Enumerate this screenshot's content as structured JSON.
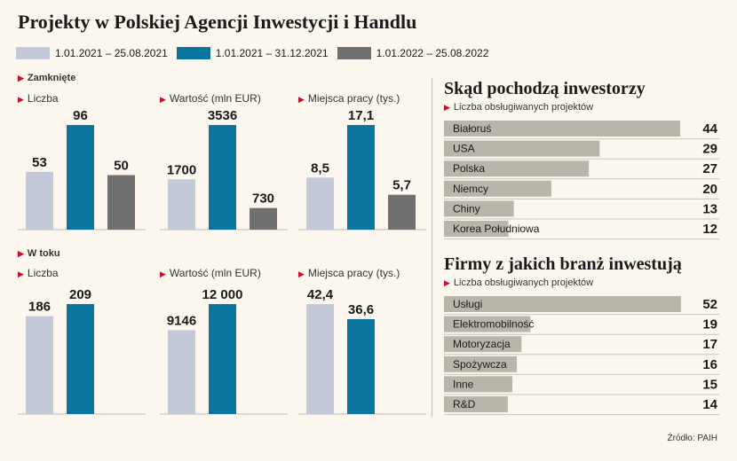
{
  "title": "Projekty w Polskiej Agencji Inwestycji i Handlu",
  "colors": {
    "light": "#c3c9d8",
    "blue": "#0a76a0",
    "dark": "#707070",
    "hbar": "#b8b5ab",
    "accent": "#c8102e"
  },
  "legend": [
    {
      "label": "1.01.2021 – 25.08.2021",
      "color": "#c3c9d8"
    },
    {
      "label": "1.01.2021 – 31.12.2021",
      "color": "#0a76a0"
    },
    {
      "label": "1.01.2022 – 25.08.2022",
      "color": "#707070"
    }
  ],
  "sections": {
    "closed": "Zamknięte",
    "ongoing": "W toku"
  },
  "source": "Źródło: PAIH",
  "right": {
    "investors_title": "Skąd pochodzą inwestorzy",
    "investors_sub": "Liczba obsługiwanych projektów",
    "industries_title": "Firmy z jakich branż inwestują",
    "industries_sub": "Liczba obsługiwanych projektów"
  },
  "chart_data": [
    {
      "type": "bar",
      "section": "Zamknięte",
      "title": "Liczba",
      "categories": [
        "1.01.2021 – 25.08.2021",
        "1.01.2021 – 31.12.2021",
        "1.01.2022 – 25.08.2022"
      ],
      "values": [
        53,
        96,
        50
      ],
      "labels": [
        "53",
        "96",
        "50"
      ]
    },
    {
      "type": "bar",
      "section": "Zamknięte",
      "title": "Wartość (mln EUR)",
      "categories": [
        "1.01.2021 – 25.08.2021",
        "1.01.2021 – 31.12.2021",
        "1.01.2022 – 25.08.2022"
      ],
      "values": [
        1700,
        3536,
        730
      ],
      "labels": [
        "1700",
        "3536",
        "730"
      ]
    },
    {
      "type": "bar",
      "section": "Zamknięte",
      "title": "Miejsca pracy (tys.)",
      "categories": [
        "1.01.2021 – 25.08.2021",
        "1.01.2021 – 31.12.2021",
        "1.01.2022 – 25.08.2022"
      ],
      "values": [
        8.5,
        17.1,
        5.7
      ],
      "labels": [
        "8,5",
        "17,1",
        "5,7"
      ]
    },
    {
      "type": "bar",
      "section": "W toku",
      "title": "Liczba",
      "categories": [
        "1.01.2021 – 25.08.2021",
        "1.01.2021 – 31.12.2021"
      ],
      "values": [
        186,
        209
      ],
      "labels": [
        "186",
        "209"
      ]
    },
    {
      "type": "bar",
      "section": "W toku",
      "title": "Wartość (mln EUR)",
      "categories": [
        "1.01.2021 – 25.08.2021",
        "1.01.2021 – 31.12.2021"
      ],
      "values": [
        9146,
        12000
      ],
      "labels": [
        "9146",
        "12 000"
      ]
    },
    {
      "type": "bar",
      "section": "W toku",
      "title": "Miejsca pracy (tys.)",
      "categories": [
        "1.01.2021 – 25.08.2021",
        "1.01.2021 – 31.12.2021"
      ],
      "values": [
        42.4,
        36.6
      ],
      "labels": [
        "42,4",
        "36,6"
      ]
    },
    {
      "type": "bar",
      "orientation": "horizontal",
      "title": "Skąd pochodzą inwestorzy",
      "categories": [
        "Białoruś",
        "USA",
        "Polska",
        "Niemcy",
        "Chiny",
        "Korea Południowa"
      ],
      "values": [
        44,
        29,
        27,
        20,
        13,
        12
      ]
    },
    {
      "type": "bar",
      "orientation": "horizontal",
      "title": "Firmy z jakich branż inwestują",
      "categories": [
        "Usługi",
        "Elektromobilność",
        "Motoryzacja",
        "Spożywcza",
        "Inne",
        "R&D"
      ],
      "values": [
        52,
        19,
        17,
        16,
        15,
        14
      ]
    }
  ]
}
